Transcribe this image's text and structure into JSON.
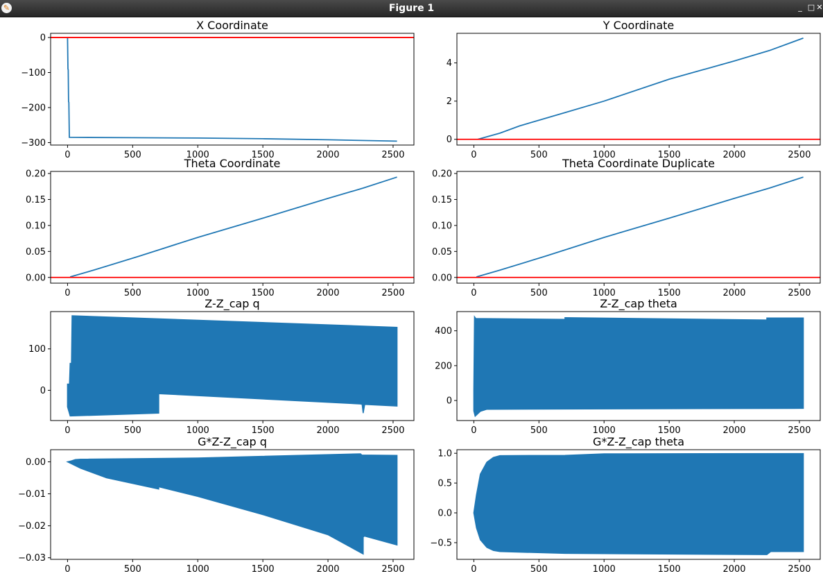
{
  "window": {
    "title": "Figure 1",
    "buttons": [
      {
        "name": "minimize-button",
        "glyph": "_"
      },
      {
        "name": "maximize-button",
        "glyph": "□"
      },
      {
        "name": "close-button",
        "glyph": "✕"
      }
    ]
  },
  "colors": {
    "line": "#1f77b4",
    "reference": "#ff0000"
  },
  "chart_data": [
    {
      "type": "line",
      "title": "X Coordinate",
      "xlim": [
        -130,
        2660
      ],
      "ylim": [
        -307,
        12
      ],
      "xticks": [
        0,
        500,
        1000,
        1500,
        2000,
        2500
      ],
      "yticks": [
        -300,
        -200,
        -100,
        0
      ],
      "ytick_labels": [
        "−300",
        "−200",
        "−100",
        "0"
      ],
      "hline": 0,
      "series": [
        {
          "x": [
            0,
            3,
            5,
            8,
            10,
            14,
            500,
            1000,
            1500,
            2000,
            2530
          ],
          "y": [
            0,
            -90,
            -92,
            -183,
            -185,
            -285,
            -286,
            -287,
            -289,
            -292,
            -296
          ]
        }
      ]
    },
    {
      "type": "line",
      "title": "Y Coordinate",
      "xlim": [
        -130,
        2660
      ],
      "ylim": [
        -0.3,
        5.55
      ],
      "xticks": [
        0,
        500,
        1000,
        1500,
        2000,
        2500
      ],
      "yticks": [
        0,
        2,
        4
      ],
      "ytick_labels": [
        "0",
        "2",
        "4"
      ],
      "hline": 0,
      "series": [
        {
          "x": [
            30,
            200,
            350,
            550,
            700,
            1000,
            1500,
            2000,
            2270,
            2530
          ],
          "y": [
            0,
            0.32,
            0.7,
            1.1,
            1.4,
            2.0,
            3.15,
            4.1,
            4.65,
            5.3
          ]
        }
      ]
    },
    {
      "type": "line",
      "title": "Theta Coordinate",
      "xlim": [
        -130,
        2660
      ],
      "ylim": [
        -0.011,
        0.204
      ],
      "xticks": [
        0,
        500,
        1000,
        1500,
        2000,
        2500
      ],
      "yticks": [
        0,
        0.05,
        0.1,
        0.15,
        0.2
      ],
      "ytick_labels": [
        "0.00",
        "0.05",
        "0.10",
        "0.15",
        "0.20"
      ],
      "hline": 0,
      "series": [
        {
          "x": [
            20,
            200,
            550,
            700,
            1000,
            1500,
            2000,
            2270,
            2530
          ],
          "y": [
            0.001,
            0.014,
            0.041,
            0.053,
            0.077,
            0.114,
            0.152,
            0.172,
            0.193
          ]
        }
      ]
    },
    {
      "type": "line",
      "title": "Theta Coordinate Duplicate",
      "xlim": [
        -130,
        2660
      ],
      "ylim": [
        -0.011,
        0.204
      ],
      "xticks": [
        0,
        500,
        1000,
        1500,
        2000,
        2500
      ],
      "yticks": [
        0,
        0.05,
        0.1,
        0.15,
        0.2
      ],
      "ytick_labels": [
        "0.00",
        "0.05",
        "0.10",
        "0.15",
        "0.20"
      ],
      "hline": 0,
      "series": [
        {
          "x": [
            20,
            200,
            550,
            700,
            1000,
            1500,
            2000,
            2270,
            2530
          ],
          "y": [
            0.001,
            0.014,
            0.041,
            0.053,
            0.077,
            0.114,
            0.152,
            0.172,
            0.193
          ]
        }
      ]
    },
    {
      "type": "area",
      "title": "Z-Z_cap q",
      "xlim": [
        -130,
        2660
      ],
      "ylim": [
        -73,
        190
      ],
      "xticks": [
        0,
        500,
        1000,
        1500,
        2000,
        2500
      ],
      "yticks": [
        0,
        100
      ],
      "ytick_labels": [
        "0",
        "100"
      ],
      "series": [
        {
          "upper": {
            "x": [
              0,
              15,
              20,
              30,
              35,
              2530
            ],
            "y": [
              15,
              15,
              65,
              65,
              180,
              152
            ]
          },
          "lower": {
            "x": [
              0,
              20,
              700,
              700,
              2250,
              2262,
              2270,
              2282,
              2530
            ],
            "y": [
              -40,
              -62,
              -55,
              -8,
              -33,
              -34,
              -55,
              -34,
              -38
            ]
          }
        }
      ]
    },
    {
      "type": "area",
      "title": "Z-Z_cap theta",
      "xlim": [
        -130,
        2660
      ],
      "ylim": [
        -115,
        510
      ],
      "xticks": [
        0,
        500,
        1000,
        1500,
        2000,
        2500
      ],
      "yticks": [
        0,
        200,
        400
      ],
      "ytick_labels": [
        "0",
        "200",
        "400"
      ],
      "series": [
        {
          "upper": {
            "x": [
              0,
              5,
              15,
              700,
              700,
              2250,
              2250,
              2530
            ],
            "y": [
              60,
              480,
              470,
              465,
              475,
              462,
              473,
              473
            ]
          },
          "lower": {
            "x": [
              0,
              10,
              50,
              100,
              2530
            ],
            "y": [
              -60,
              -90,
              -62,
              -50,
              -45
            ]
          }
        }
      ]
    },
    {
      "type": "area",
      "title": "G*Z-Z_cap q",
      "xlim": [
        -130,
        2660
      ],
      "ylim": [
        -0.0305,
        0.0038
      ],
      "xticks": [
        0,
        500,
        1000,
        1500,
        2000,
        2500
      ],
      "yticks": [
        0,
        -0.01,
        -0.02,
        -0.03
      ],
      "ytick_labels": [
        "0.00",
        "−0.01",
        "−0.02",
        "−0.03"
      ],
      "series": [
        {
          "upper": {
            "x": [
              0,
              30,
              60,
              100,
              1000,
              2250,
              2260,
              2530
            ],
            "y": [
              0,
              0.0003,
              0.0007,
              0.0008,
              0.0012,
              0.0025,
              0.0021,
              0.002
            ]
          },
          "lower": {
            "x": [
              0,
              100,
              300,
              700,
              700,
              1000,
              1500,
              2000,
              2270,
              2270,
              2280,
              2530
            ],
            "y": [
              0,
              -0.002,
              -0.005,
              -0.0085,
              -0.0078,
              -0.0108,
              -0.0165,
              -0.0228,
              -0.0288,
              -0.0235,
              -0.0232,
              -0.026
            ]
          }
        }
      ]
    },
    {
      "type": "area",
      "title": "G*Z-Z_cap theta",
      "xlim": [
        -130,
        2660
      ],
      "ylim": [
        -0.78,
        1.06
      ],
      "xticks": [
        0,
        500,
        1000,
        1500,
        2000,
        2500
      ],
      "yticks": [
        -0.5,
        0,
        0.5,
        1
      ],
      "ytick_labels": [
        "−0.5",
        "0.0",
        "0.5",
        "1.0"
      ],
      "series": [
        {
          "upper": {
            "x": [
              0,
              20,
              50,
              100,
              150,
              200,
              700,
              1000,
              2530
            ],
            "y": [
              0,
              0.3,
              0.65,
              0.85,
              0.93,
              0.96,
              0.965,
              0.99,
              0.995
            ]
          },
          "lower": {
            "x": [
              0,
              20,
              50,
              100,
              150,
              200,
              700,
              2250,
              2280,
              2530
            ],
            "y": [
              0,
              -0.25,
              -0.45,
              -0.58,
              -0.63,
              -0.65,
              -0.68,
              -0.7,
              -0.65,
              -0.65
            ]
          }
        }
      ]
    }
  ]
}
